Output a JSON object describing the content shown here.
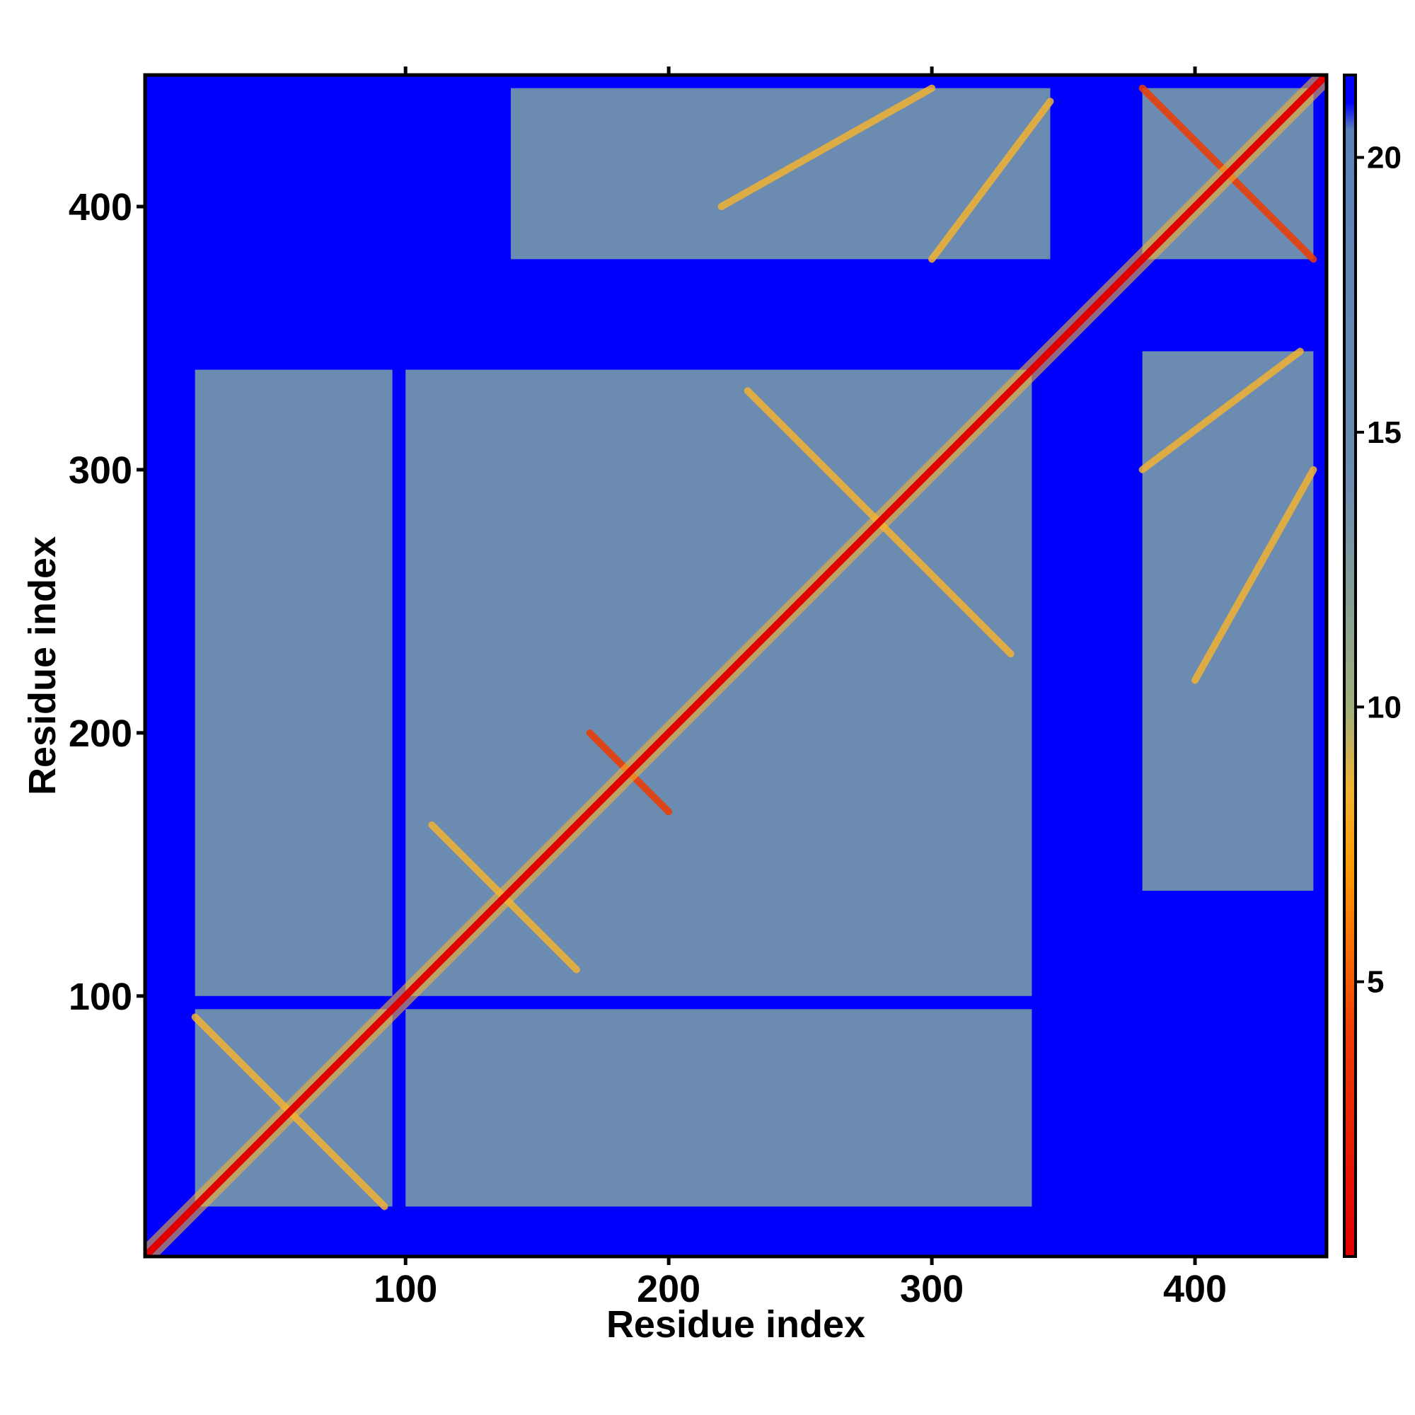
{
  "chart_data": {
    "type": "heatmap",
    "title": "",
    "xlabel": "Residue index",
    "ylabel": "Residue index",
    "xlim": [
      1,
      450
    ],
    "ylim": [
      1,
      450
    ],
    "x_ticks": [
      100,
      200,
      300,
      400
    ],
    "y_ticks": [
      100,
      200,
      300,
      400
    ],
    "x_tick_labels": [
      "100",
      "200",
      "300",
      "400"
    ],
    "y_tick_labels": [
      "100",
      "200",
      "300",
      "400"
    ],
    "colorbar": {
      "range": [
        0,
        21.5
      ],
      "ticks": [
        5,
        10,
        15,
        20
      ],
      "tick_labels": [
        "5",
        "10",
        "15",
        "20"
      ],
      "stops": [
        {
          "value": 0,
          "color": "#e00000"
        },
        {
          "value": 4,
          "color": "#ee3a00"
        },
        {
          "value": 7,
          "color": "#ff9900"
        },
        {
          "value": 8.5,
          "color": "#f2b233"
        },
        {
          "value": 10,
          "color": "#9fb07a"
        },
        {
          "value": 14,
          "color": "#6b8cb0"
        },
        {
          "value": 20.5,
          "color": "#5a82b8"
        },
        {
          "value": 21,
          "color": "#0000ff"
        }
      ]
    },
    "background_value": 21.5,
    "diagonal_value": 0,
    "regions": [
      {
        "x": [
          20,
          95
        ],
        "y": [
          20,
          95
        ],
        "value": 17
      },
      {
        "x": [
          100,
          338
        ],
        "y": [
          100,
          338
        ],
        "value": 17
      },
      {
        "x": [
          380,
          445
        ],
        "y": [
          380,
          445
        ],
        "value": 17
      },
      {
        "x": [
          140,
          345
        ],
        "y": [
          380,
          445
        ],
        "value": 17.5
      },
      {
        "x": [
          380,
          445
        ],
        "y": [
          140,
          345
        ],
        "value": 17.5
      },
      {
        "x": [
          20,
          95
        ],
        "y": [
          100,
          338
        ],
        "value": 19
      },
      {
        "x": [
          100,
          338
        ],
        "y": [
          20,
          95
        ],
        "value": 19
      }
    ],
    "contact_lines": [
      {
        "from": [
          20,
          92
        ],
        "to": [
          92,
          20
        ],
        "value": 9
      },
      {
        "from": [
          110,
          165
        ],
        "to": [
          165,
          110
        ],
        "value": 9
      },
      {
        "from": [
          170,
          200
        ],
        "to": [
          200,
          170
        ],
        "value": 6
      },
      {
        "from": [
          230,
          330
        ],
        "to": [
          330,
          230
        ],
        "value": 9
      },
      {
        "from": [
          380,
          445
        ],
        "to": [
          445,
          380
        ],
        "value": 6
      },
      {
        "from": [
          220,
          400
        ],
        "to": [
          300,
          445
        ],
        "value": 9
      },
      {
        "from": [
          300,
          380
        ],
        "to": [
          345,
          440
        ],
        "value": 9
      },
      {
        "from": [
          400,
          220
        ],
        "to": [
          445,
          300
        ],
        "value": 9
      },
      {
        "from": [
          380,
          300
        ],
        "to": [
          440,
          345
        ],
        "value": 9
      }
    ]
  }
}
